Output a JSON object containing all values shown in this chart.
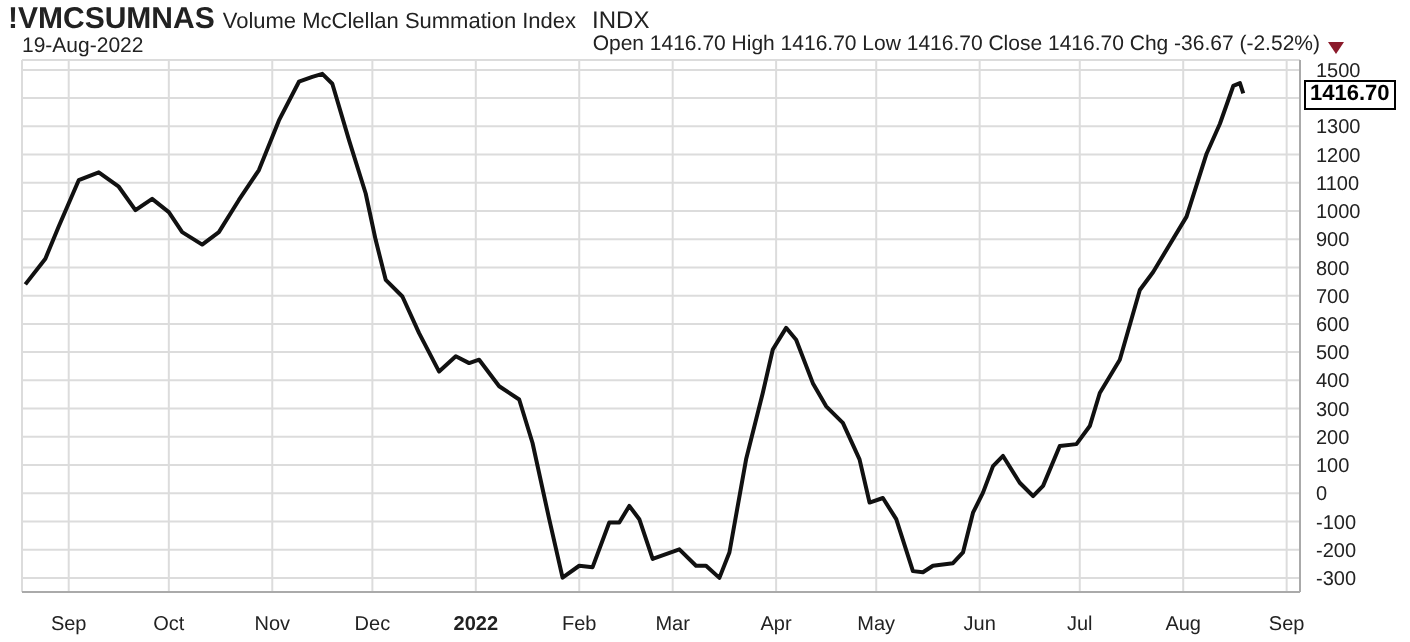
{
  "chart_data": {
    "type": "line",
    "title": "!VMCSUMNAS",
    "subtitle": "Volume McClellan Summation Index",
    "annotations": [
      "INDX",
      "19-Aug-2022",
      "Open 1416.70 High 1416.70 Low 1416.70 Close 1416.70 Chg -36.67 (-2.52%)",
      "1416.70"
    ],
    "x": [
      "2021-08-19",
      "2021-08-25",
      "2021-08-29",
      "2021-09-04",
      "2021-09-10",
      "2021-09-16",
      "2021-09-21",
      "2021-09-26",
      "2021-10-01",
      "2021-10-05",
      "2021-10-11",
      "2021-10-16",
      "2021-10-22",
      "2021-10-28",
      "2021-11-03",
      "2021-11-09",
      "2021-11-13",
      "2021-11-16",
      "2021-11-19",
      "2021-11-24",
      "2021-11-29",
      "2021-12-02",
      "2021-12-05",
      "2021-12-10",
      "2021-12-15",
      "2021-12-21",
      "2021-12-26",
      "2021-12-30",
      "2022-01-02",
      "2022-01-08",
      "2022-01-14",
      "2022-01-18",
      "2022-01-23",
      "2022-01-27",
      "2022-02-01",
      "2022-02-05",
      "2022-02-10",
      "2022-02-13",
      "2022-02-16",
      "2022-02-19",
      "2022-02-23",
      "2022-03-03",
      "2022-03-08",
      "2022-03-11",
      "2022-03-15",
      "2022-03-18",
      "2022-03-23",
      "2022-03-28",
      "2022-03-31",
      "2022-04-04",
      "2022-04-07",
      "2022-04-12",
      "2022-04-16",
      "2022-04-21",
      "2022-04-26",
      "2022-04-29",
      "2022-05-03",
      "2022-05-07",
      "2022-05-12",
      "2022-05-15",
      "2022-05-18",
      "2022-05-24",
      "2022-05-27",
      "2022-05-30",
      "2022-06-02",
      "2022-06-05",
      "2022-06-08",
      "2022-06-13",
      "2022-06-17",
      "2022-06-20",
      "2022-06-25",
      "2022-06-30",
      "2022-07-04",
      "2022-07-07",
      "2022-07-13",
      "2022-07-19",
      "2022-07-23",
      "2022-08-02",
      "2022-08-08",
      "2022-08-12",
      "2022-08-16",
      "2022-08-18",
      "2022-08-19"
    ],
    "series": [
      {
        "color": "#111111",
        "values": [
          740,
          831,
          945,
          1109,
          1137,
          1086,
          1003,
          1043,
          996,
          925,
          881,
          925,
          1039,
          1145,
          1321,
          1458,
          1475,
          1486,
          1451,
          1251,
          1062,
          897,
          756,
          697,
          567,
          431,
          485,
          461,
          473,
          379,
          332,
          178,
          -92,
          -299,
          -257,
          -262,
          -104,
          -104,
          -45,
          -92,
          -233,
          -199,
          -257,
          -257,
          -300,
          -210,
          120,
          355,
          509,
          586,
          544,
          390,
          308,
          249,
          120,
          -33,
          -17,
          -92,
          -276,
          -280,
          -257,
          -248,
          -210,
          -69,
          2,
          96,
          132,
          37,
          -10,
          26,
          167,
          174,
          238,
          355,
          473,
          720,
          784,
          980,
          1203,
          1309,
          1443,
          1453,
          1416.7
        ]
      }
    ],
    "xlim": [
      "2021-08-18",
      "2022-09-05"
    ],
    "xticks": [
      {
        "value": "2021-09-01",
        "label": "Sep"
      },
      {
        "value": "2021-10-01",
        "label": "Oct"
      },
      {
        "value": "2021-11-01",
        "label": "Nov"
      },
      {
        "value": "2021-12-01",
        "label": "Dec"
      },
      {
        "value": "2022-01-01",
        "label": "2022"
      },
      {
        "value": "2022-02-01",
        "label": "Feb"
      },
      {
        "value": "2022-03-01",
        "label": "Mar"
      },
      {
        "value": "2022-04-01",
        "label": "Apr"
      },
      {
        "value": "2022-05-01",
        "label": "May"
      },
      {
        "value": "2022-06-01",
        "label": "Jun"
      },
      {
        "value": "2022-07-01",
        "label": "Jul"
      },
      {
        "value": "2022-08-01",
        "label": "Aug"
      },
      {
        "value": "2022-09-01",
        "label": "Sep"
      }
    ],
    "ylim": [
      -350,
      1535
    ],
    "yticks": [
      -300,
      -200,
      -100,
      0,
      100,
      200,
      300,
      400,
      500,
      600,
      700,
      800,
      900,
      1000,
      1100,
      1200,
      1300,
      {
        "value": 1400,
        "label": null
      },
      1500
    ],
    "grid": true,
    "legend": false,
    "marker": "none",
    "line_style": "solid"
  }
}
